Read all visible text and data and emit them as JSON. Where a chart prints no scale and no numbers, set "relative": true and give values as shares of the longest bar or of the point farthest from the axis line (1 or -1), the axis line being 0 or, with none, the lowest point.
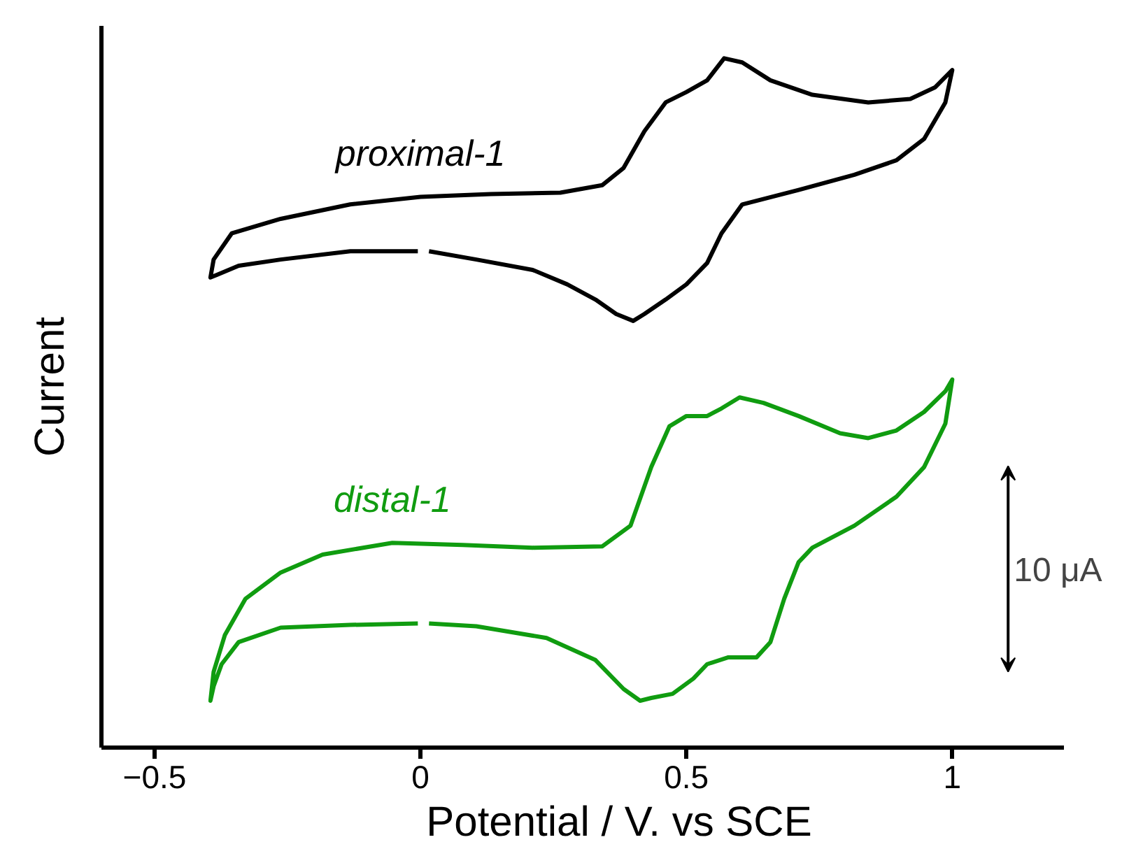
{
  "chart_data": {
    "type": "line",
    "relative": true,
    "xlabel": "Potential / V. vs SCE",
    "ylabel": "Current",
    "xlim": [
      -0.6,
      1.21
    ],
    "xticks": [
      {
        "value": -0.5,
        "label": "−0.5"
      },
      0,
      0.5,
      1
    ],
    "grid": false,
    "line_style": "solid",
    "annotations": [
      "10 μA"
    ],
    "series": [
      {
        "name": "proximal-1",
        "color": "#000000",
        "x": [
          -0.005,
          -0.132,
          -0.263,
          -0.342,
          -0.382,
          -0.395,
          -0.389,
          -0.355,
          -0.263,
          -0.132,
          0,
          0.132,
          0.263,
          0.342,
          0.382,
          0.421,
          0.461,
          0.5,
          0.539,
          0.571,
          0.605,
          0.658,
          0.737,
          0.842,
          0.921,
          0.968,
          1.0,
          0.987,
          0.947,
          0.895,
          0.816,
          0.711,
          0.605,
          0.566,
          0.539,
          0.5,
          0.461,
          0.421,
          0.4,
          0.368,
          0.329,
          0.276,
          0.211,
          0.105,
          0.016
        ],
        "values": [
          0.72,
          0.72,
          0.708,
          0.699,
          0.686,
          0.682,
          0.708,
          0.746,
          0.767,
          0.788,
          0.799,
          0.803,
          0.805,
          0.816,
          0.841,
          0.894,
          0.936,
          0.951,
          0.968,
          1.0,
          0.994,
          0.968,
          0.947,
          0.936,
          0.941,
          0.958,
          0.983,
          0.936,
          0.883,
          0.852,
          0.831,
          0.809,
          0.788,
          0.746,
          0.703,
          0.672,
          0.65,
          0.629,
          0.619,
          0.629,
          0.65,
          0.672,
          0.693,
          0.708,
          0.72
        ]
      },
      {
        "name": "distal-1",
        "color": "#109c10",
        "x": [
          -0.005,
          -0.132,
          -0.263,
          -0.342,
          -0.374,
          -0.389,
          -0.395,
          -0.389,
          -0.368,
          -0.329,
          -0.263,
          -0.184,
          -0.053,
          0.079,
          0.211,
          0.342,
          0.395,
          0.434,
          0.468,
          0.5,
          0.539,
          0.566,
          0.6,
          0.645,
          0.711,
          0.789,
          0.842,
          0.895,
          0.947,
          0.987,
          1.0,
          0.987,
          0.947,
          0.895,
          0.816,
          0.737,
          0.711,
          0.684,
          0.658,
          0.632,
          0.579,
          0.539,
          0.513,
          0.474,
          0.434,
          0.413,
          0.382,
          0.329,
          0.237,
          0.105,
          0.016
        ],
        "values": [
          0.18,
          0.178,
          0.174,
          0.153,
          0.121,
          0.089,
          0.068,
          0.11,
          0.163,
          0.216,
          0.254,
          0.28,
          0.297,
          0.294,
          0.29,
          0.292,
          0.322,
          0.407,
          0.466,
          0.481,
          0.481,
          0.492,
          0.508,
          0.5,
          0.481,
          0.456,
          0.449,
          0.46,
          0.487,
          0.517,
          0.534,
          0.47,
          0.407,
          0.364,
          0.322,
          0.29,
          0.269,
          0.216,
          0.153,
          0.131,
          0.131,
          0.121,
          0.1,
          0.078,
          0.072,
          0.068,
          0.085,
          0.127,
          0.159,
          0.176,
          0.18
        ]
      }
    ]
  }
}
